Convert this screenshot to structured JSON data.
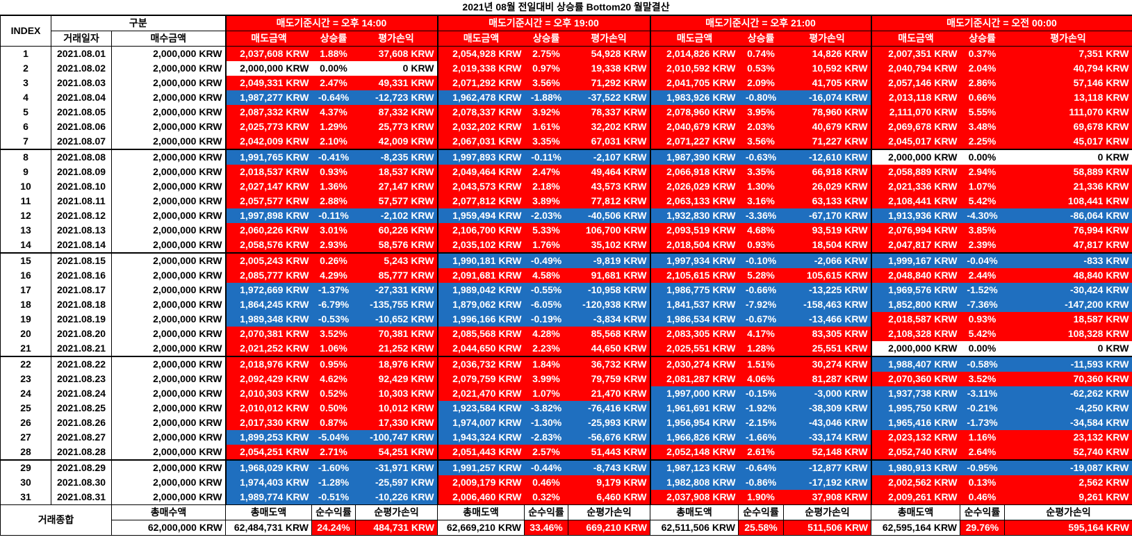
{
  "title": "2021년 08월 전일대비 상승률 Bottom20 월말결산",
  "headers": {
    "index": "INDEX",
    "gubun": "구분",
    "trade_date": "거래일자",
    "buy_amount": "매수금액",
    "sell_amount": "매도금액",
    "rate": "상승률",
    "eval": "평가손익"
  },
  "groups": [
    {
      "label": "매도기준시간 = 오후 14:00"
    },
    {
      "label": "매도기준시간 = 오후 19:00"
    },
    {
      "label": "매도기준시간 = 오후 21:00"
    },
    {
      "label": "매도기준시간 = 오전 00:00"
    }
  ],
  "rows": [
    {
      "idx": "1",
      "date": "2021.08.01",
      "buy": "2,000,000 KRW",
      "g": [
        [
          "2,037,608 KRW",
          "1.88%",
          "37,608 KRW"
        ],
        [
          "2,054,928 KRW",
          "2.75%",
          "54,928 KRW"
        ],
        [
          "2,014,826 KRW",
          "0.74%",
          "14,826 KRW"
        ],
        [
          "2,007,351 KRW",
          "0.37%",
          "7,351 KRW"
        ]
      ]
    },
    {
      "idx": "2",
      "date": "2021.08.02",
      "buy": "2,000,000 KRW",
      "g": [
        [
          "2,000,000 KRW",
          "0.00%",
          "0 KRW"
        ],
        [
          "2,019,338 KRW",
          "0.97%",
          "19,338 KRW"
        ],
        [
          "2,010,592 KRW",
          "0.53%",
          "10,592 KRW"
        ],
        [
          "2,040,794 KRW",
          "2.04%",
          "40,794 KRW"
        ]
      ]
    },
    {
      "idx": "3",
      "date": "2021.08.03",
      "buy": "2,000,000 KRW",
      "g": [
        [
          "2,049,331 KRW",
          "2.47%",
          "49,331 KRW"
        ],
        [
          "2,071,292 KRW",
          "3.56%",
          "71,292 KRW"
        ],
        [
          "2,041,705 KRW",
          "2.09%",
          "41,705 KRW"
        ],
        [
          "2,057,146 KRW",
          "2.86%",
          "57,146 KRW"
        ]
      ]
    },
    {
      "idx": "4",
      "date": "2021.08.04",
      "buy": "2,000,000 KRW",
      "g": [
        [
          "1,987,277 KRW",
          "-0.64%",
          "-12,723 KRW"
        ],
        [
          "1,962,478 KRW",
          "-1.88%",
          "-37,522 KRW"
        ],
        [
          "1,983,926 KRW",
          "-0.80%",
          "-16,074 KRW"
        ],
        [
          "2,013,118 KRW",
          "0.66%",
          "13,118 KRW"
        ]
      ]
    },
    {
      "idx": "5",
      "date": "2021.08.05",
      "buy": "2,000,000 KRW",
      "g": [
        [
          "2,087,332 KRW",
          "4.37%",
          "87,332 KRW"
        ],
        [
          "2,078,337 KRW",
          "3.92%",
          "78,337 KRW"
        ],
        [
          "2,078,960 KRW",
          "3.95%",
          "78,960 KRW"
        ],
        [
          "2,111,070 KRW",
          "5.55%",
          "111,070 KRW"
        ]
      ]
    },
    {
      "idx": "6",
      "date": "2021.08.06",
      "buy": "2,000,000 KRW",
      "g": [
        [
          "2,025,773 KRW",
          "1.29%",
          "25,773 KRW"
        ],
        [
          "2,032,202 KRW",
          "1.61%",
          "32,202 KRW"
        ],
        [
          "2,040,679 KRW",
          "2.03%",
          "40,679 KRW"
        ],
        [
          "2,069,678 KRW",
          "3.48%",
          "69,678 KRW"
        ]
      ]
    },
    {
      "idx": "7",
      "date": "2021.08.07",
      "buy": "2,000,000 KRW",
      "g": [
        [
          "2,042,009 KRW",
          "2.10%",
          "42,009 KRW"
        ],
        [
          "2,067,031 KRW",
          "3.35%",
          "67,031 KRW"
        ],
        [
          "2,071,227 KRW",
          "3.56%",
          "71,227 KRW"
        ],
        [
          "2,045,017 KRW",
          "2.25%",
          "45,017 KRW"
        ]
      ]
    },
    {
      "idx": "8",
      "date": "2021.08.08",
      "buy": "2,000,000 KRW",
      "g": [
        [
          "1,991,765 KRW",
          "-0.41%",
          "-8,235 KRW"
        ],
        [
          "1,997,893 KRW",
          "-0.11%",
          "-2,107 KRW"
        ],
        [
          "1,987,390 KRW",
          "-0.63%",
          "-12,610 KRW"
        ],
        [
          "2,000,000 KRW",
          "0.00%",
          "0 KRW"
        ]
      ]
    },
    {
      "idx": "9",
      "date": "2021.08.09",
      "buy": "2,000,000 KRW",
      "g": [
        [
          "2,018,537 KRW",
          "0.93%",
          "18,537 KRW"
        ],
        [
          "2,049,464 KRW",
          "2.47%",
          "49,464 KRW"
        ],
        [
          "2,066,918 KRW",
          "3.35%",
          "66,918 KRW"
        ],
        [
          "2,058,889 KRW",
          "2.94%",
          "58,889 KRW"
        ]
      ]
    },
    {
      "idx": "10",
      "date": "2021.08.10",
      "buy": "2,000,000 KRW",
      "g": [
        [
          "2,027,147 KRW",
          "1.36%",
          "27,147 KRW"
        ],
        [
          "2,043,573 KRW",
          "2.18%",
          "43,573 KRW"
        ],
        [
          "2,026,029 KRW",
          "1.30%",
          "26,029 KRW"
        ],
        [
          "2,021,336 KRW",
          "1.07%",
          "21,336 KRW"
        ]
      ]
    },
    {
      "idx": "11",
      "date": "2021.08.11",
      "buy": "2,000,000 KRW",
      "g": [
        [
          "2,057,577 KRW",
          "2.88%",
          "57,577 KRW"
        ],
        [
          "2,077,812 KRW",
          "3.89%",
          "77,812 KRW"
        ],
        [
          "2,063,133 KRW",
          "3.16%",
          "63,133 KRW"
        ],
        [
          "2,108,441 KRW",
          "5.42%",
          "108,441 KRW"
        ]
      ]
    },
    {
      "idx": "12",
      "date": "2021.08.12",
      "buy": "2,000,000 KRW",
      "g": [
        [
          "1,997,898 KRW",
          "-0.11%",
          "-2,102 KRW"
        ],
        [
          "1,959,494 KRW",
          "-2.03%",
          "-40,506 KRW"
        ],
        [
          "1,932,830 KRW",
          "-3.36%",
          "-67,170 KRW"
        ],
        [
          "1,913,936 KRW",
          "-4.30%",
          "-86,064 KRW"
        ]
      ]
    },
    {
      "idx": "13",
      "date": "2021.08.13",
      "buy": "2,000,000 KRW",
      "g": [
        [
          "2,060,226 KRW",
          "3.01%",
          "60,226 KRW"
        ],
        [
          "2,106,700 KRW",
          "5.33%",
          "106,700 KRW"
        ],
        [
          "2,093,519 KRW",
          "4.68%",
          "93,519 KRW"
        ],
        [
          "2,076,994 KRW",
          "3.85%",
          "76,994 KRW"
        ]
      ]
    },
    {
      "idx": "14",
      "date": "2021.08.14",
      "buy": "2,000,000 KRW",
      "g": [
        [
          "2,058,576 KRW",
          "2.93%",
          "58,576 KRW"
        ],
        [
          "2,035,102 KRW",
          "1.76%",
          "35,102 KRW"
        ],
        [
          "2,018,504 KRW",
          "0.93%",
          "18,504 KRW"
        ],
        [
          "2,047,817 KRW",
          "2.39%",
          "47,817 KRW"
        ]
      ]
    },
    {
      "idx": "15",
      "date": "2021.08.15",
      "buy": "2,000,000 KRW",
      "g": [
        [
          "2,005,243 KRW",
          "0.26%",
          "5,243 KRW"
        ],
        [
          "1,990,181 KRW",
          "-0.49%",
          "-9,819 KRW"
        ],
        [
          "1,997,934 KRW",
          "-0.10%",
          "-2,066 KRW"
        ],
        [
          "1,999,167 KRW",
          "-0.04%",
          "-833 KRW"
        ]
      ]
    },
    {
      "idx": "16",
      "date": "2021.08.16",
      "buy": "2,000,000 KRW",
      "g": [
        [
          "2,085,777 KRW",
          "4.29%",
          "85,777 KRW"
        ],
        [
          "2,091,681 KRW",
          "4.58%",
          "91,681 KRW"
        ],
        [
          "2,105,615 KRW",
          "5.28%",
          "105,615 KRW"
        ],
        [
          "2,048,840 KRW",
          "2.44%",
          "48,840 KRW"
        ]
      ]
    },
    {
      "idx": "17",
      "date": "2021.08.17",
      "buy": "2,000,000 KRW",
      "g": [
        [
          "1,972,669 KRW",
          "-1.37%",
          "-27,331 KRW"
        ],
        [
          "1,989,042 KRW",
          "-0.55%",
          "-10,958 KRW"
        ],
        [
          "1,986,775 KRW",
          "-0.66%",
          "-13,225 KRW"
        ],
        [
          "1,969,576 KRW",
          "-1.52%",
          "-30,424 KRW"
        ]
      ]
    },
    {
      "idx": "18",
      "date": "2021.08.18",
      "buy": "2,000,000 KRW",
      "g": [
        [
          "1,864,245 KRW",
          "-6.79%",
          "-135,755 KRW"
        ],
        [
          "1,879,062 KRW",
          "-6.05%",
          "-120,938 KRW"
        ],
        [
          "1,841,537 KRW",
          "-7.92%",
          "-158,463 KRW"
        ],
        [
          "1,852,800 KRW",
          "-7.36%",
          "-147,200 KRW"
        ]
      ]
    },
    {
      "idx": "19",
      "date": "2021.08.19",
      "buy": "2,000,000 KRW",
      "g": [
        [
          "1,989,348 KRW",
          "-0.53%",
          "-10,652 KRW"
        ],
        [
          "1,996,166 KRW",
          "-0.19%",
          "-3,834 KRW"
        ],
        [
          "1,986,534 KRW",
          "-0.67%",
          "-13,466 KRW"
        ],
        [
          "2,018,587 KRW",
          "0.93%",
          "18,587 KRW"
        ]
      ]
    },
    {
      "idx": "20",
      "date": "2021.08.20",
      "buy": "2,000,000 KRW",
      "g": [
        [
          "2,070,381 KRW",
          "3.52%",
          "70,381 KRW"
        ],
        [
          "2,085,568 KRW",
          "4.28%",
          "85,568 KRW"
        ],
        [
          "2,083,305 KRW",
          "4.17%",
          "83,305 KRW"
        ],
        [
          "2,108,328 KRW",
          "5.42%",
          "108,328 KRW"
        ]
      ]
    },
    {
      "idx": "21",
      "date": "2021.08.21",
      "buy": "2,000,000 KRW",
      "g": [
        [
          "2,021,252 KRW",
          "1.06%",
          "21,252 KRW"
        ],
        [
          "2,044,650 KRW",
          "2.23%",
          "44,650 KRW"
        ],
        [
          "2,025,551 KRW",
          "1.28%",
          "25,551 KRW"
        ],
        [
          "2,000,000 KRW",
          "0.00%",
          "0 KRW"
        ]
      ]
    },
    {
      "idx": "22",
      "date": "2021.08.22",
      "buy": "2,000,000 KRW",
      "g": [
        [
          "2,018,976 KRW",
          "0.95%",
          "18,976 KRW"
        ],
        [
          "2,036,732 KRW",
          "1.84%",
          "36,732 KRW"
        ],
        [
          "2,030,274 KRW",
          "1.51%",
          "30,274 KRW"
        ],
        [
          "1,988,407 KRW",
          "-0.58%",
          "-11,593 KRW"
        ]
      ]
    },
    {
      "idx": "23",
      "date": "2021.08.23",
      "buy": "2,000,000 KRW",
      "g": [
        [
          "2,092,429 KRW",
          "4.62%",
          "92,429 KRW"
        ],
        [
          "2,079,759 KRW",
          "3.99%",
          "79,759 KRW"
        ],
        [
          "2,081,287 KRW",
          "4.06%",
          "81,287 KRW"
        ],
        [
          "2,070,360 KRW",
          "3.52%",
          "70,360 KRW"
        ]
      ]
    },
    {
      "idx": "24",
      "date": "2021.08.24",
      "buy": "2,000,000 KRW",
      "g": [
        [
          "2,010,303 KRW",
          "0.52%",
          "10,303 KRW"
        ],
        [
          "2,021,470 KRW",
          "1.07%",
          "21,470 KRW"
        ],
        [
          "1,997,000 KRW",
          "-0.15%",
          "-3,000 KRW"
        ],
        [
          "1,937,738 KRW",
          "-3.11%",
          "-62,262 KRW"
        ]
      ]
    },
    {
      "idx": "25",
      "date": "2021.08.25",
      "buy": "2,000,000 KRW",
      "g": [
        [
          "2,010,012 KRW",
          "0.50%",
          "10,012 KRW"
        ],
        [
          "1,923,584 KRW",
          "-3.82%",
          "-76,416 KRW"
        ],
        [
          "1,961,691 KRW",
          "-1.92%",
          "-38,309 KRW"
        ],
        [
          "1,995,750 KRW",
          "-0.21%",
          "-4,250 KRW"
        ]
      ]
    },
    {
      "idx": "26",
      "date": "2021.08.26",
      "buy": "2,000,000 KRW",
      "g": [
        [
          "2,017,330 KRW",
          "0.87%",
          "17,330 KRW"
        ],
        [
          "1,974,007 KRW",
          "-1.30%",
          "-25,993 KRW"
        ],
        [
          "1,956,954 KRW",
          "-2.15%",
          "-43,046 KRW"
        ],
        [
          "1,965,416 KRW",
          "-1.73%",
          "-34,584 KRW"
        ]
      ]
    },
    {
      "idx": "27",
      "date": "2021.08.27",
      "buy": "2,000,000 KRW",
      "g": [
        [
          "1,899,253 KRW",
          "-5.04%",
          "-100,747 KRW"
        ],
        [
          "1,943,324 KRW",
          "-2.83%",
          "-56,676 KRW"
        ],
        [
          "1,966,826 KRW",
          "-1.66%",
          "-33,174 KRW"
        ],
        [
          "2,023,132 KRW",
          "1.16%",
          "23,132 KRW"
        ]
      ]
    },
    {
      "idx": "28",
      "date": "2021.08.28",
      "buy": "2,000,000 KRW",
      "g": [
        [
          "2,054,251 KRW",
          "2.71%",
          "54,251 KRW"
        ],
        [
          "2,051,443 KRW",
          "2.57%",
          "51,443 KRW"
        ],
        [
          "2,052,148 KRW",
          "2.61%",
          "52,148 KRW"
        ],
        [
          "2,052,740 KRW",
          "2.64%",
          "52,740 KRW"
        ]
      ]
    },
    {
      "idx": "29",
      "date": "2021.08.29",
      "buy": "2,000,000 KRW",
      "g": [
        [
          "1,968,029 KRW",
          "-1.60%",
          "-31,971 KRW"
        ],
        [
          "1,991,257 KRW",
          "-0.44%",
          "-8,743 KRW"
        ],
        [
          "1,987,123 KRW",
          "-0.64%",
          "-12,877 KRW"
        ],
        [
          "1,980,913 KRW",
          "-0.95%",
          "-19,087 KRW"
        ]
      ]
    },
    {
      "idx": "30",
      "date": "2021.08.30",
      "buy": "2,000,000 KRW",
      "g": [
        [
          "1,974,403 KRW",
          "-1.28%",
          "-25,597 KRW"
        ],
        [
          "2,009,179 KRW",
          "0.46%",
          "9,179 KRW"
        ],
        [
          "1,982,808 KRW",
          "-0.86%",
          "-17,192 KRW"
        ],
        [
          "2,002,562 KRW",
          "0.13%",
          "2,562 KRW"
        ]
      ]
    },
    {
      "idx": "31",
      "date": "2021.08.31",
      "buy": "2,000,000 KRW",
      "g": [
        [
          "1,989,774 KRW",
          "-0.51%",
          "-10,226 KRW"
        ],
        [
          "2,006,460 KRW",
          "0.32%",
          "6,460 KRW"
        ],
        [
          "2,037,908 KRW",
          "1.90%",
          "37,908 KRW"
        ],
        [
          "2,009,261 KRW",
          "0.46%",
          "9,261 KRW"
        ]
      ]
    }
  ],
  "footer": {
    "label": "거래종합",
    "total_buy_label": "총매수액",
    "total_buy": "62,000,000 KRW",
    "total_sell_label": "총매도액",
    "net_rate_label": "순수익률",
    "net_eval_label": "순평가손익",
    "groups": [
      [
        "62,484,731 KRW",
        "24.24%",
        "484,731 KRW"
      ],
      [
        "62,669,210 KRW",
        "33.46%",
        "669,210 KRW"
      ],
      [
        "62,511,506 KRW",
        "25.58%",
        "511,506 KRW"
      ],
      [
        "62,595,164 KRW",
        "29.76%",
        "595,164 KRW"
      ]
    ]
  },
  "colors": {
    "up": "#ff0000",
    "down": "#1f6fbf",
    "flat": "#ffffff"
  }
}
